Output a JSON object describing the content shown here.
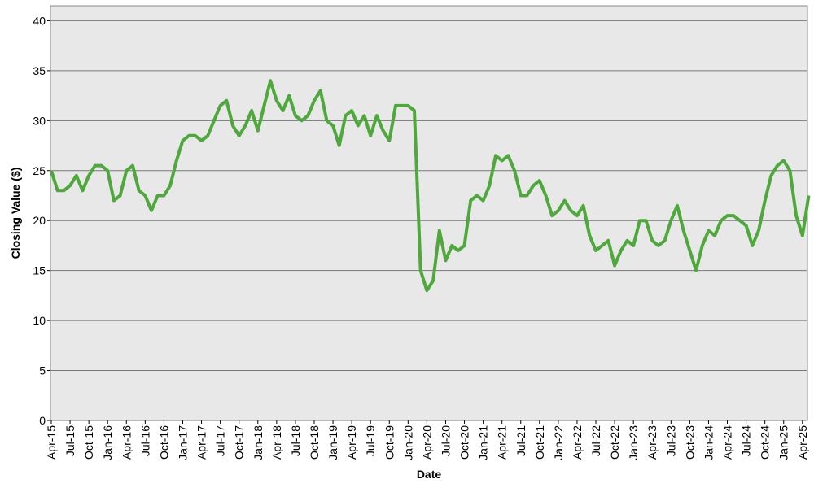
{
  "chart_data": {
    "type": "line",
    "y_label": "Closing Value ($)",
    "x_label": "Date",
    "categories": [
      "Apr-15",
      null,
      null,
      "Jul-15",
      null,
      null,
      "Oct-15",
      null,
      null,
      "Jan-16",
      null,
      null,
      "Apr-16",
      null,
      null,
      "Jul-16",
      null,
      null,
      "Oct-16",
      null,
      null,
      "Jan-17",
      null,
      null,
      "Apr-17",
      null,
      null,
      "Jul-17",
      null,
      null,
      "Oct-17",
      null,
      null,
      "Jan-18",
      null,
      null,
      "Apr-18",
      null,
      null,
      "Jul-18",
      null,
      null,
      "Oct-18",
      null,
      null,
      "Jan-19",
      null,
      null,
      "Apr-19",
      null,
      null,
      "Jul-19",
      null,
      null,
      "Oct-19",
      null,
      null,
      "Jan-20",
      null,
      null,
      "Apr-20",
      null,
      null,
      "Jul-20",
      null,
      null,
      "Oct-20",
      null,
      null,
      "Jan-21",
      null,
      null,
      "Apr-21",
      null,
      null,
      "Jul-21",
      null,
      null,
      "Oct-21",
      null,
      null,
      "Jan-22",
      null,
      null,
      "Apr-22",
      null,
      null,
      "Jul-22",
      null,
      null,
      "Oct-22",
      null,
      null,
      "Jan-23",
      null,
      null,
      "Apr-23",
      null,
      null,
      "Jul-23",
      null,
      null,
      "Oct-23",
      null,
      null,
      "Jan-24",
      null,
      null,
      "Apr-24",
      null,
      null,
      "Jul-24",
      null,
      null,
      "Oct-24",
      null,
      null,
      "Jan-25",
      null,
      null,
      "Apr-25",
      null
    ],
    "values": [
      25,
      23,
      23,
      23.5,
      24.5,
      23,
      24.5,
      25.5,
      25.5,
      25,
      22,
      22.5,
      25,
      25.5,
      23,
      22.5,
      21,
      22.5,
      22.5,
      23.5,
      26,
      28,
      28.5,
      28.5,
      28,
      28.5,
      30,
      31.5,
      32,
      29.5,
      28.5,
      29.5,
      31,
      29,
      31.5,
      34,
      32,
      31,
      32.5,
      30.5,
      30,
      30.5,
      32,
      33,
      30,
      29.5,
      27.5,
      30.5,
      31,
      29.5,
      30.5,
      28.5,
      30.5,
      29,
      28,
      31.5,
      31.5,
      31.5,
      31,
      15,
      13,
      14,
      19,
      16,
      17.5,
      17,
      17.5,
      22,
      22.5,
      22,
      23.5,
      26.5,
      26,
      26.5,
      25,
      22.5,
      22.5,
      23.5,
      24,
      22.5,
      20.5,
      21,
      22,
      21,
      20.5,
      21.5,
      18.5,
      17,
      17.5,
      18,
      15.5,
      17,
      18,
      17.5,
      20,
      20,
      18,
      17.5,
      18,
      20,
      21.5,
      19,
      17,
      15,
      17.5,
      19,
      18.5,
      20,
      20.5,
      20.5,
      20,
      19.5,
      17.5,
      19,
      22,
      24.5,
      25.5,
      26,
      25,
      20.5,
      18.5,
      22.5
    ],
    "color": "#4ea83c",
    "ylim": [
      0,
      41.5
    ],
    "yticks": [
      0,
      5,
      10,
      15,
      20,
      25,
      30,
      35,
      40
    ],
    "grid": true
  }
}
